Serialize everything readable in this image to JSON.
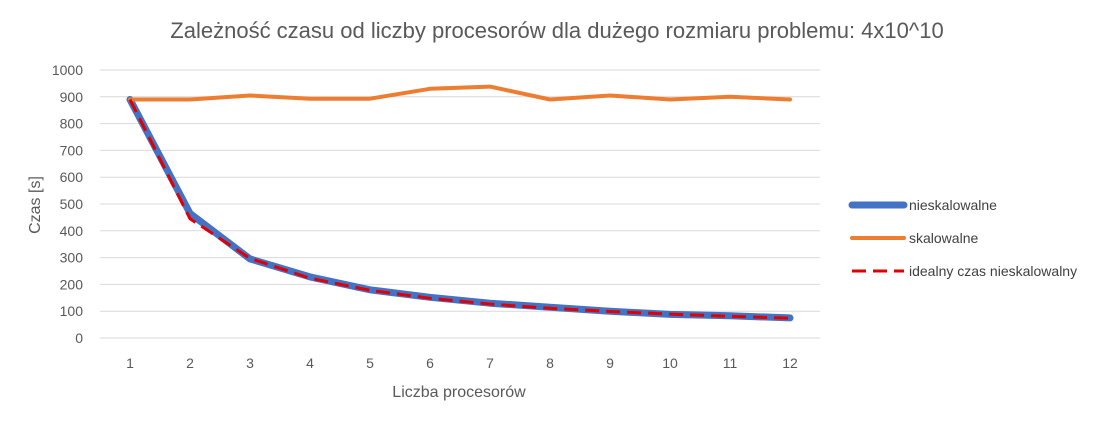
{
  "chart_data": {
    "type": "line",
    "title": "Zależność czasu od liczby procesorów dla dużego rozmiaru problemu: 4x10^10",
    "xlabel": "Liczba procesorów",
    "ylabel": "Czas [s]",
    "categories": [
      "1",
      "2",
      "3",
      "4",
      "5",
      "6",
      "7",
      "8",
      "9",
      "10",
      "11",
      "12"
    ],
    "ylim": [
      0,
      1000
    ],
    "yticks": [
      "0",
      "100",
      "200",
      "300",
      "400",
      "500",
      "600",
      "700",
      "800",
      "900",
      "1000"
    ],
    "grid": true,
    "legend_position": "right",
    "series": [
      {
        "name": "nieskalowalne",
        "color": "#4472C4",
        "style": "solid-thick",
        "values": [
          890,
          465,
          295,
          228,
          180,
          152,
          130,
          115,
          100,
          88,
          83,
          75
        ]
      },
      {
        "name": "skalowalne",
        "color": "#ED7D31",
        "style": "solid",
        "values": [
          890,
          890,
          905,
          893,
          893,
          930,
          938,
          890,
          905,
          890,
          900,
          890
        ]
      },
      {
        "name": "idealny czas nieskalowalny",
        "color": "#E00000",
        "style": "dashed",
        "values": [
          890,
          445,
          297,
          223,
          178,
          148,
          127,
          111,
          99,
          89,
          81,
          74
        ]
      }
    ]
  }
}
